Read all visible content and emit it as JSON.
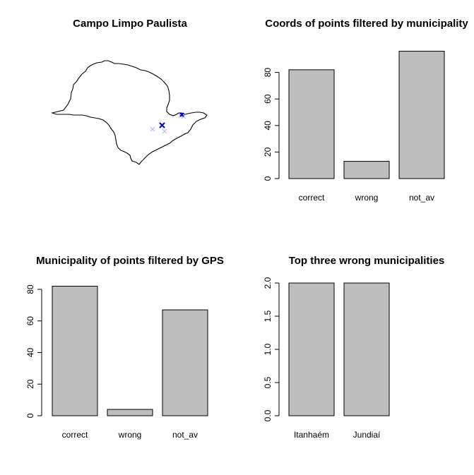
{
  "chart_data": [
    {
      "type": "map",
      "title": "Campo Limpo Paulista",
      "markers": [
        {
          "kind": "highlight",
          "color": "#0000cd"
        },
        {
          "kind": "other",
          "color": "#b0b0ff"
        }
      ]
    },
    {
      "type": "bar",
      "title": "Coords of points filtered by municipality",
      "categories": [
        "correct",
        "wrong",
        "not_av"
      ],
      "values": [
        82,
        13,
        96
      ],
      "ylim": [
        0,
        100
      ],
      "yticks": [
        "0",
        "20",
        "40",
        "60",
        "80"
      ],
      "xlabel": "",
      "ylabel": ""
    },
    {
      "type": "bar",
      "title": "Municipality of points filtered by GPS",
      "categories": [
        "correct",
        "wrong",
        "not_av"
      ],
      "values": [
        82,
        4,
        67
      ],
      "ylim": [
        0,
        84
      ],
      "yticks": [
        "0",
        "20",
        "40",
        "60",
        "80"
      ],
      "xlabel": "",
      "ylabel": ""
    },
    {
      "type": "bar",
      "title": "Top three wrong municipalities",
      "categories": [
        "Itanhaém",
        "Jundiaí"
      ],
      "values": [
        2,
        2
      ],
      "ylim": [
        0,
        2
      ],
      "yticks": [
        "0.0",
        "0.5",
        "1.0",
        "1.5",
        "2.0"
      ],
      "xlabel": "",
      "ylabel": ""
    }
  ],
  "colors": {
    "bar_fill": "#bebebe",
    "bar_stroke": "#000000"
  }
}
